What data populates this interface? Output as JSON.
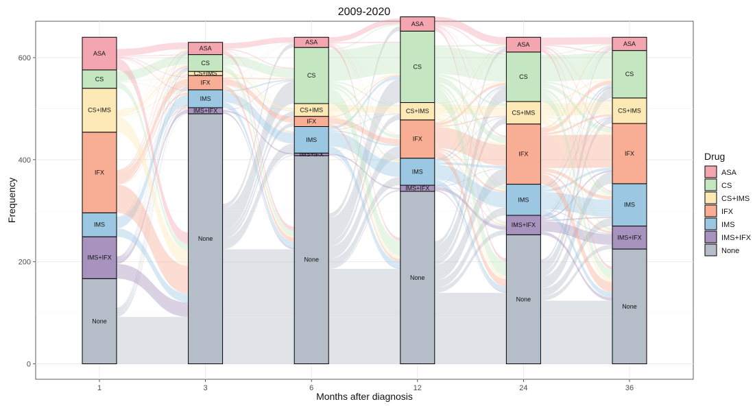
{
  "chart_data": {
    "type": "alluvial",
    "title": "2009-2020",
    "xlabel": "Months after diagnosis",
    "ylabel": "Frequency",
    "ylim": [
      0,
      640
    ],
    "y_ticks": [
      0,
      200,
      400,
      600
    ],
    "grid": true,
    "legend": {
      "title": "Drug",
      "position": "right"
    },
    "categories": [
      "1",
      "3",
      "6",
      "12",
      "24",
      "36"
    ],
    "drugs": [
      "None",
      "IMS+IFX",
      "IMS",
      "IFX",
      "CS+IMS",
      "CS",
      "ASA"
    ],
    "legend_order": [
      "ASA",
      "CS",
      "CS+IMS",
      "IFX",
      "IMS",
      "IMS+IFX",
      "None"
    ],
    "colors": {
      "ASA": "#f4a6b0",
      "CS": "#c4e6c0",
      "CS+IMS": "#fde9b5",
      "IFX": "#f8ae95",
      "IMS": "#9cc7e2",
      "IMS+IFX": "#a793bd",
      "None": "#b4bdc8"
    },
    "series": [
      {
        "name": "None",
        "values": [
          167,
          490,
          408,
          338,
          253,
          225
        ]
      },
      {
        "name": "IMS+IFX",
        "values": [
          82,
          12,
          5,
          12,
          38,
          45
        ]
      },
      {
        "name": "IMS",
        "values": [
          47,
          35,
          52,
          53,
          61,
          83
        ]
      },
      {
        "name": "IFX",
        "values": [
          158,
          28,
          20,
          75,
          118,
          118
        ]
      },
      {
        "name": "CS+IMS",
        "values": [
          86,
          8,
          25,
          34,
          44,
          50
        ]
      },
      {
        "name": "CS",
        "values": [
          36,
          33,
          110,
          140,
          97,
          93
        ]
      },
      {
        "name": "ASA",
        "values": [
          64,
          24,
          20,
          28,
          29,
          26
        ]
      }
    ]
  }
}
